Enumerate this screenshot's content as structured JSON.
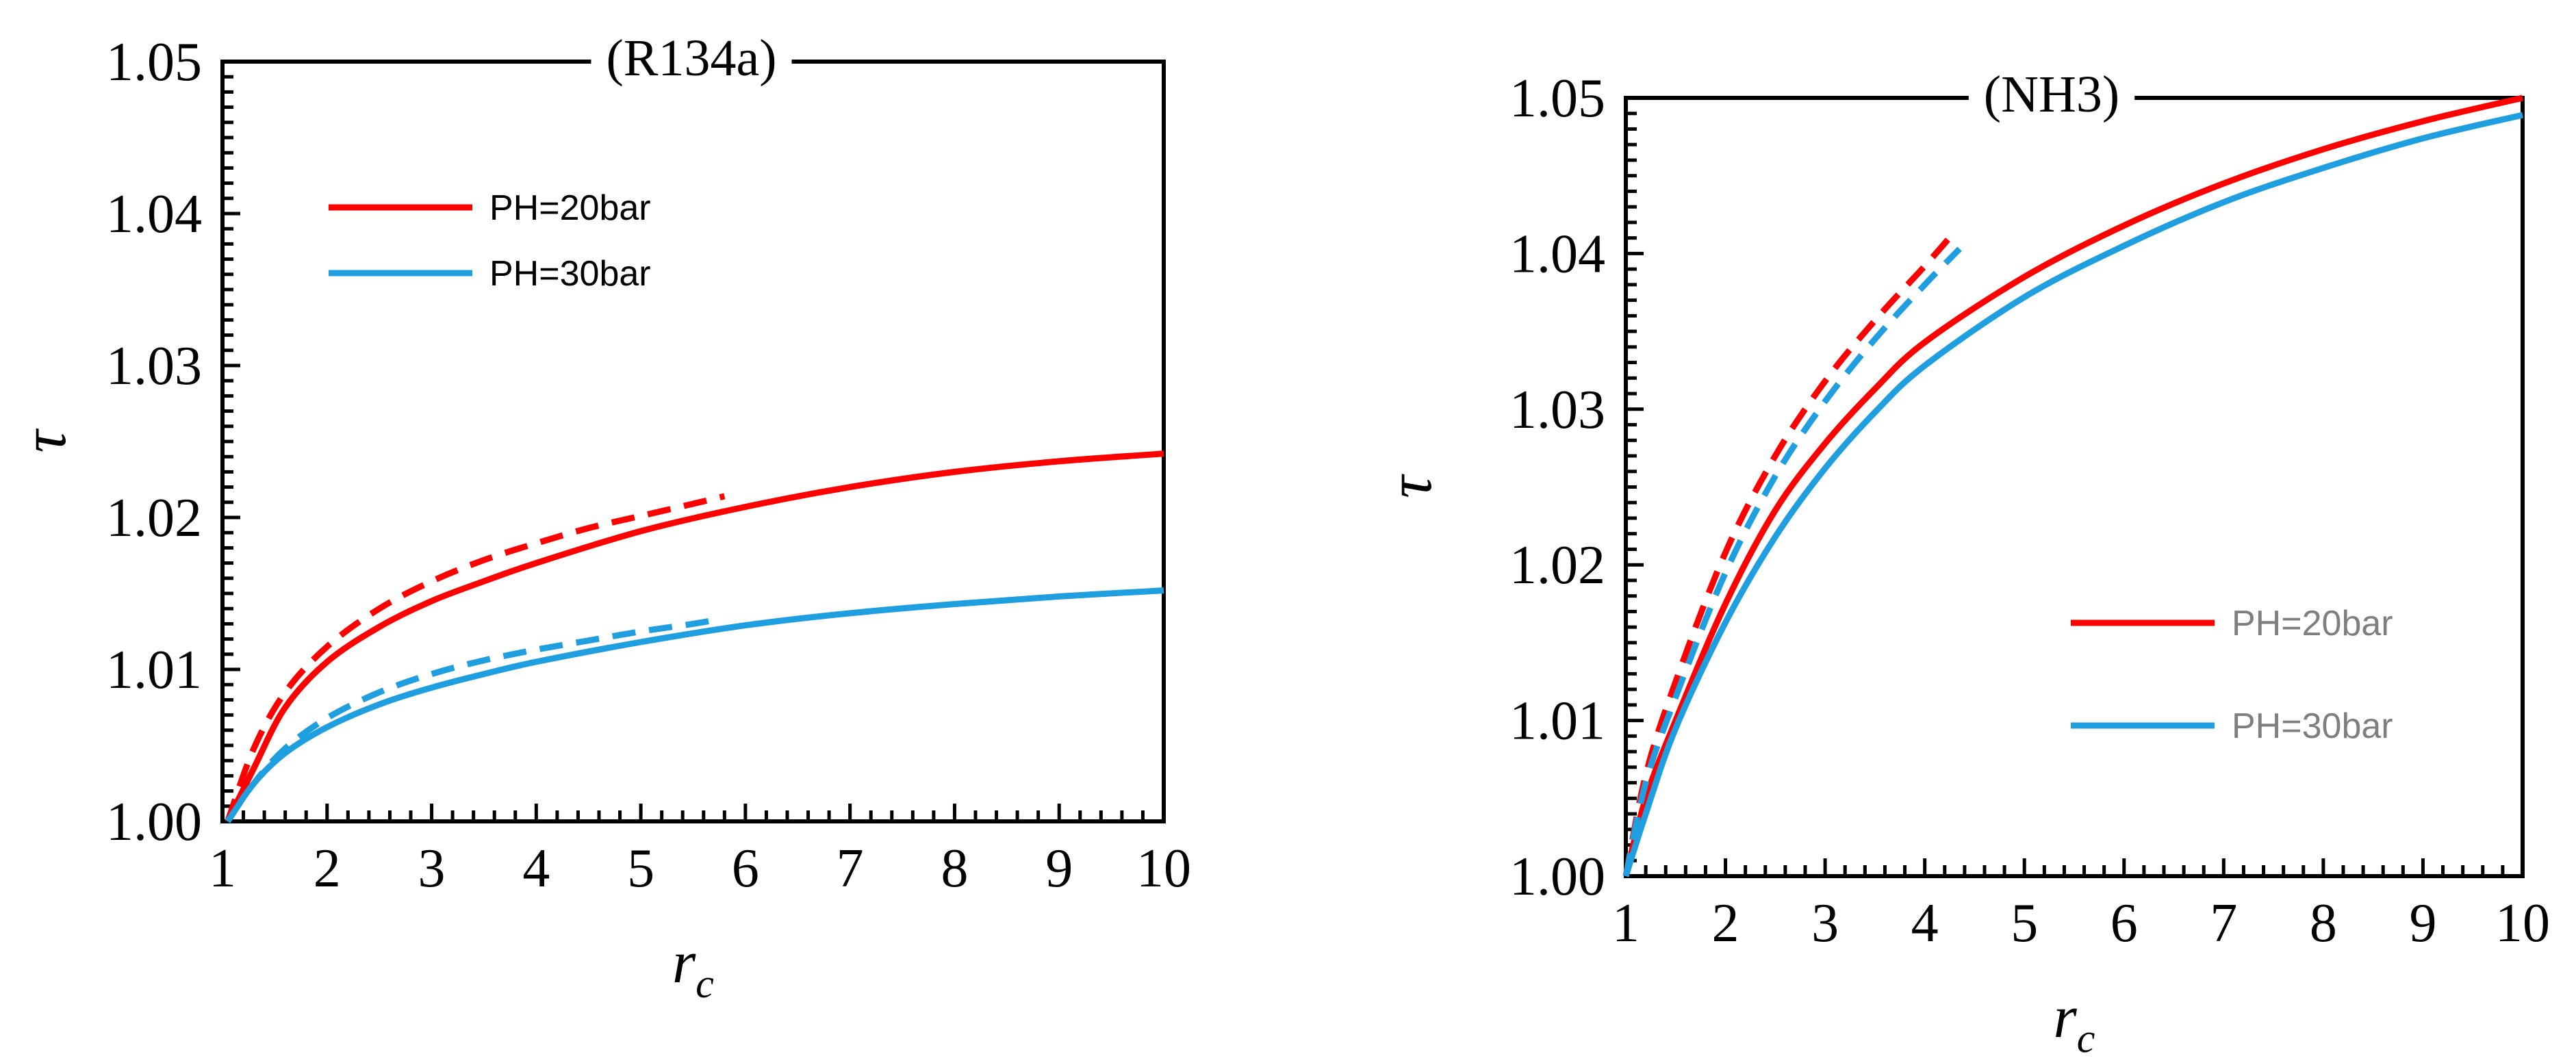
{
  "chart_data": [
    {
      "type": "line",
      "title": "(R134a)",
      "xlabel": "r",
      "xlabel_sub": "c",
      "ylabel": "τ",
      "xlim": [
        1,
        10
      ],
      "ylim": [
        1.0,
        1.05
      ],
      "xticks": [
        "1",
        "2",
        "3",
        "4",
        "5",
        "6",
        "7",
        "8",
        "9",
        "10"
      ],
      "yticks": [
        "1.00",
        "1.01",
        "1.02",
        "1.03",
        "1.04",
        "1.05"
      ],
      "grid": false,
      "legend_position": "upper-left",
      "legend_text_color": "#000000",
      "series": [
        {
          "name": "PH=20bar",
          "color": "#ff0000",
          "style": "solid",
          "legend": true,
          "x": [
            1.05,
            1.3,
            1.6,
            2.0,
            2.5,
            3.0,
            3.5,
            4.0,
            5.0,
            6.0,
            7.0,
            8.0,
            9.0,
            10.0
          ],
          "y": [
            1.0,
            1.0035,
            1.0075,
            1.0105,
            1.0128,
            1.0145,
            1.0158,
            1.017,
            1.0191,
            1.0207,
            1.022,
            1.023,
            1.0237,
            1.0242
          ]
        },
        {
          "name": "PH=30bar",
          "color": "#1f9ee0",
          "style": "solid",
          "legend": true,
          "x": [
            1.05,
            1.3,
            1.6,
            2.0,
            2.5,
            3.0,
            3.5,
            4.0,
            5.0,
            6.0,
            7.0,
            8.0,
            9.0,
            10.0
          ],
          "y": [
            1.0,
            1.0025,
            1.0045,
            1.0062,
            1.0077,
            1.0088,
            1.0097,
            1.0105,
            1.0118,
            1.0129,
            1.0137,
            1.0143,
            1.0148,
            1.0152
          ]
        },
        {
          "color": "#ff0000",
          "style": "dashed",
          "legend": false,
          "x": [
            1.05,
            1.3,
            1.6,
            2.0,
            2.5,
            3.0,
            3.5,
            4.0,
            4.5,
            5.0,
            5.5,
            5.8
          ],
          "y": [
            1.0,
            1.0048,
            1.0085,
            1.0115,
            1.014,
            1.0158,
            1.0172,
            1.0183,
            1.0193,
            1.0201,
            1.0209,
            1.0214
          ]
        },
        {
          "color": "#1f9ee0",
          "style": "dashed",
          "legend": false,
          "x": [
            1.05,
            1.3,
            1.6,
            2.0,
            2.5,
            3.0,
            3.5,
            4.0,
            4.5,
            5.0,
            5.5,
            5.75
          ],
          "y": [
            1.0,
            1.0025,
            1.0048,
            1.0068,
            1.0085,
            1.0097,
            1.0106,
            1.0113,
            1.0119,
            1.0125,
            1.013,
            1.0133
          ]
        }
      ]
    },
    {
      "type": "line",
      "title": "(NH3)",
      "xlabel": "r",
      "xlabel_sub": "c",
      "ylabel": "τ",
      "xlim": [
        1,
        10
      ],
      "ylim": [
        1.0,
        1.05
      ],
      "xticks": [
        "1",
        "2",
        "3",
        "4",
        "5",
        "6",
        "7",
        "8",
        "9",
        "10"
      ],
      "yticks": [
        "1.00",
        "1.01",
        "1.02",
        "1.03",
        "1.04",
        "1.05"
      ],
      "grid": false,
      "legend_position": "lower-right",
      "legend_text_color": "#7f7f7f",
      "series": [
        {
          "name": "PH=20bar",
          "color": "#ff0000",
          "style": "solid",
          "legend": true,
          "x": [
            1.0,
            1.2,
            1.5,
            2.0,
            2.5,
            3.0,
            3.5,
            4.0,
            5.0,
            6.0,
            7.0,
            8.0,
            9.0,
            10.0
          ],
          "y": [
            1.0,
            1.005,
            1.01,
            1.0175,
            1.0235,
            1.0278,
            1.0313,
            1.0343,
            1.0385,
            1.0418,
            1.0445,
            1.0467,
            1.0485,
            1.05
          ]
        },
        {
          "name": "PH=30bar",
          "color": "#1f9ee0",
          "style": "solid",
          "legend": true,
          "x": [
            1.0,
            1.2,
            1.5,
            2.0,
            2.5,
            3.0,
            3.5,
            4.0,
            5.0,
            6.0,
            7.0,
            8.0,
            9.0,
            10.0
          ],
          "y": [
            1.0,
            1.004,
            1.0095,
            1.0163,
            1.0218,
            1.0262,
            1.0298,
            1.0328,
            1.0372,
            1.0405,
            1.0433,
            1.0455,
            1.0474,
            1.0489
          ]
        },
        {
          "color": "#ff0000",
          "style": "dashed",
          "legend": false,
          "x": [
            1.0,
            1.2,
            1.5,
            2.0,
            2.5,
            3.0,
            3.5,
            4.0,
            4.3
          ],
          "y": [
            1.0,
            1.0065,
            1.0125,
            1.0208,
            1.027,
            1.0318,
            1.0357,
            1.0392,
            1.0414
          ]
        },
        {
          "color": "#1f9ee0",
          "style": "dashed",
          "legend": false,
          "x": [
            1.0,
            1.2,
            1.5,
            2.0,
            2.5,
            3.0,
            3.5,
            4.0,
            4.35
          ],
          "y": [
            1.0,
            1.006,
            1.0115,
            1.0195,
            1.0257,
            1.0305,
            1.0345,
            1.038,
            1.0403
          ]
        }
      ]
    }
  ]
}
